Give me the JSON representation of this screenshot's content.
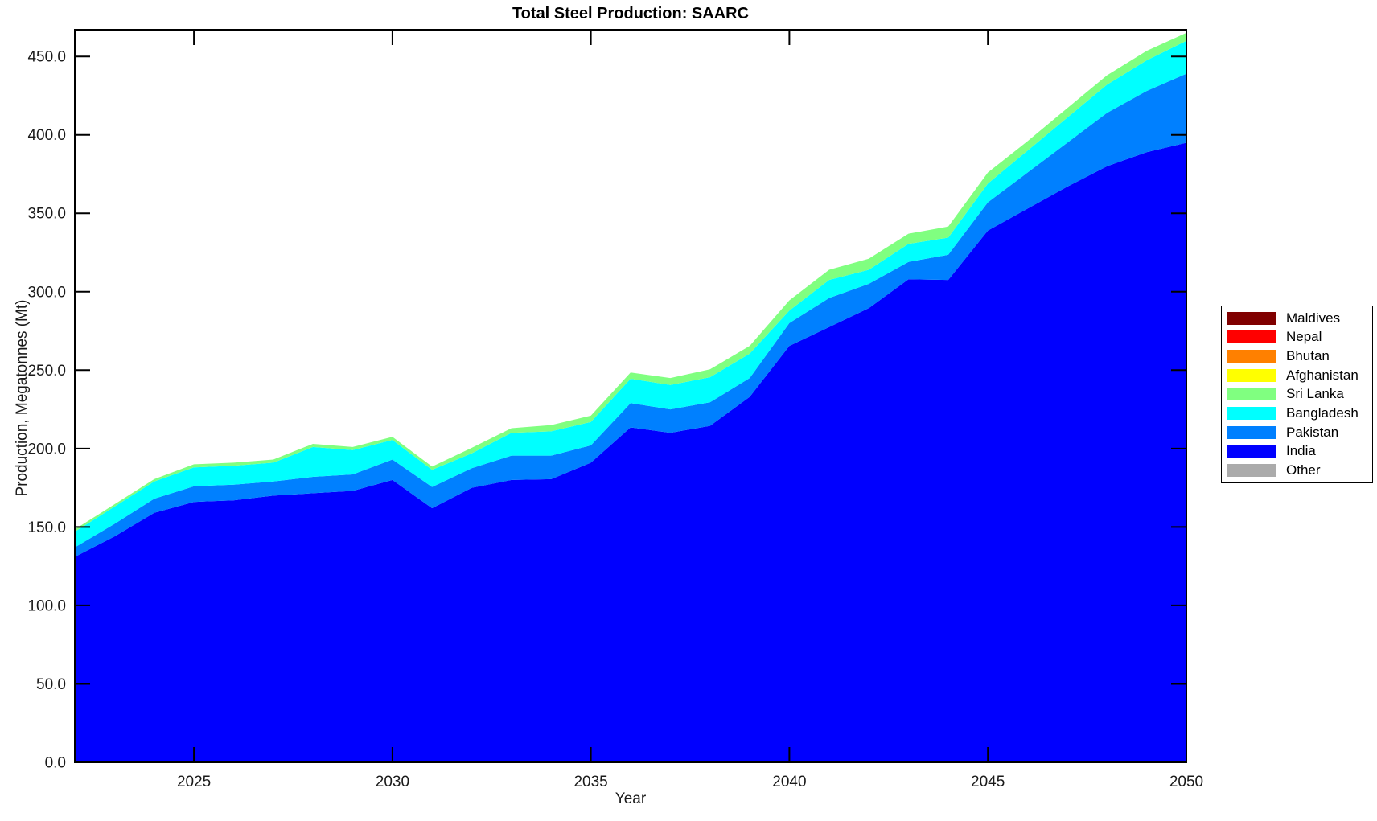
{
  "figure": {
    "title": "Total Steel Production: SAARC",
    "background": "#FFFFFF"
  },
  "chart_data": {
    "type": "area",
    "stacked": true,
    "title": "Total Steel Production: SAARC",
    "xlabel": "Year",
    "ylabel": "Production, Megatonnes (Mt)",
    "xlim": [
      2022,
      2050
    ],
    "ylim": [
      0,
      467
    ],
    "grid": false,
    "legend_position": "right-outside",
    "frame_color": "#000000",
    "x_ticks": [
      2025,
      2030,
      2035,
      2040,
      2045,
      2050
    ],
    "y_ticks": [
      {
        "value": 0,
        "label": "0.0"
      },
      {
        "value": 50,
        "label": "50.0"
      },
      {
        "value": 100,
        "label": "100.0"
      },
      {
        "value": 150,
        "label": "150.0"
      },
      {
        "value": 200,
        "label": "200.0"
      },
      {
        "value": 250,
        "label": "250.0"
      },
      {
        "value": 300,
        "label": "300.0"
      },
      {
        "value": 350,
        "label": "350.0"
      },
      {
        "value": 400,
        "label": "400.0"
      },
      {
        "value": 450,
        "label": "450.0"
      }
    ],
    "x": [
      2022,
      2023,
      2024,
      2025,
      2026,
      2027,
      2028,
      2029,
      2030,
      2031,
      2032,
      2033,
      2034,
      2035,
      2036,
      2037,
      2038,
      2039,
      2040,
      2041,
      2042,
      2043,
      2044,
      2045,
      2046,
      2047,
      2048,
      2049,
      2050
    ],
    "series": [
      {
        "name": "Other",
        "color": "#ABABAB",
        "values": [
          0,
          0,
          0,
          0,
          0,
          0,
          0,
          0,
          0,
          0,
          0,
          0,
          0,
          0,
          0,
          0,
          0,
          0,
          0,
          0,
          0,
          0,
          0,
          0,
          0,
          0,
          0,
          0,
          0
        ]
      },
      {
        "name": "India",
        "color": "#0000FF",
        "values": [
          131,
          144,
          159,
          166,
          167,
          170,
          171.5,
          173,
          180,
          162,
          175,
          180,
          180.5,
          191,
          213.5,
          210,
          214.5,
          233,
          265.5,
          277.5,
          289.5,
          308,
          307.5,
          339,
          353,
          367,
          380,
          389,
          395
        ]
      },
      {
        "name": "Pakistan",
        "color": "#0080FF",
        "values": [
          6,
          8,
          9,
          10,
          10,
          9,
          10.5,
          10.5,
          13,
          13.5,
          12.5,
          15.5,
          15,
          11,
          15.5,
          15,
          15,
          12,
          14.5,
          18.5,
          15.5,
          11,
          16,
          18,
          23,
          28,
          34,
          39,
          44
        ]
      },
      {
        "name": "Bangladesh",
        "color": "#00FFFF",
        "values": [
          10,
          11,
          11,
          12,
          12,
          12,
          19,
          15.5,
          12.5,
          11,
          9.5,
          14.5,
          15.5,
          15,
          15.5,
          15.5,
          16,
          15.5,
          8,
          11.5,
          9,
          11.5,
          11,
          12,
          14,
          16,
          18,
          19.5,
          21
        ]
      },
      {
        "name": "Sri Lanka",
        "color": "#80FF80",
        "values": [
          1.5,
          1.5,
          1.5,
          2,
          2,
          2,
          2,
          2,
          2,
          2,
          3.5,
          3,
          4,
          4,
          4,
          4.5,
          5,
          5,
          6.5,
          6.5,
          7,
          6.5,
          7,
          7,
          6,
          6,
          6,
          6,
          5
        ]
      },
      {
        "name": "Afghanistan",
        "color": "#FFFF00",
        "values": [
          0,
          0,
          0,
          0,
          0,
          0,
          0,
          0,
          0,
          0,
          0,
          0,
          0,
          0,
          0,
          0,
          0,
          0,
          0,
          0,
          0,
          0,
          0,
          0,
          0,
          0,
          0,
          0,
          0
        ]
      },
      {
        "name": "Bhutan",
        "color": "#FF8000",
        "values": [
          0,
          0,
          0,
          0,
          0,
          0,
          0,
          0,
          0,
          0,
          0,
          0,
          0,
          0,
          0,
          0,
          0,
          0,
          0,
          0,
          0,
          0,
          0,
          0,
          0,
          0,
          0,
          0,
          0
        ]
      },
      {
        "name": "Nepal",
        "color": "#FF0000",
        "values": [
          0,
          0,
          0,
          0,
          0,
          0,
          0,
          0,
          0,
          0,
          0,
          0,
          0,
          0,
          0,
          0,
          0,
          0,
          0,
          0,
          0,
          0,
          0,
          0,
          0,
          0,
          0,
          0,
          0
        ]
      },
      {
        "name": "Maldives",
        "color": "#800000",
        "values": [
          0,
          0,
          0,
          0,
          0,
          0,
          0,
          0,
          0,
          0,
          0,
          0,
          0,
          0,
          0,
          0,
          0,
          0,
          0,
          0,
          0,
          0,
          0,
          0,
          0,
          0,
          0,
          0,
          0
        ]
      }
    ],
    "legend": [
      {
        "label": "Maldives",
        "color": "#800000"
      },
      {
        "label": "Nepal",
        "color": "#FF0000"
      },
      {
        "label": "Bhutan",
        "color": "#FF8000"
      },
      {
        "label": "Afghanistan",
        "color": "#FFFF00"
      },
      {
        "label": "Sri Lanka",
        "color": "#80FF80"
      },
      {
        "label": "Bangladesh",
        "color": "#00FFFF"
      },
      {
        "label": "Pakistan",
        "color": "#0080FF"
      },
      {
        "label": "India",
        "color": "#0000FF"
      },
      {
        "label": "Other",
        "color": "#ABABAB"
      }
    ]
  }
}
